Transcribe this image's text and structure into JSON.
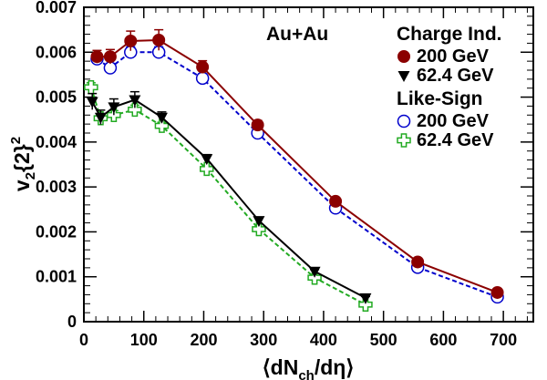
{
  "chart_data": {
    "type": "line",
    "annotation": "Au+Au",
    "xlabel_parts": {
      "open": "⟨dN",
      "sub": "ch",
      "close": "/dη⟩"
    },
    "ylabel_parts": {
      "main": "v",
      "sub": "2",
      "mid": "{2}",
      "sup": "2"
    },
    "xlim": [
      0,
      750
    ],
    "ylim": [
      0,
      0.007
    ],
    "x_ticks": [
      0,
      100,
      200,
      300,
      400,
      500,
      600,
      700
    ],
    "x_tick_labels": [
      "0",
      "100",
      "200",
      "300",
      "400",
      "500",
      "600",
      "700"
    ],
    "y_ticks": [
      0,
      0.001,
      0.002,
      0.003,
      0.004,
      0.005,
      0.006,
      0.007
    ],
    "y_tick_labels": [
      "0",
      "0.001",
      "0.002",
      "0.003",
      "0.004",
      "0.005",
      "0.006",
      "0.007"
    ],
    "legend_groups": [
      {
        "title": "Charge Ind.",
        "entries": [
          "200 GeV",
          "62.4 GeV"
        ]
      },
      {
        "title": "Like-Sign",
        "entries": [
          "200 GeV",
          "62.4 GeV"
        ]
      }
    ],
    "legend_position": "top-right",
    "series": [
      {
        "name": "Charge Ind. 200 GeV",
        "color": "#8b0000",
        "marker": "filled-circle",
        "line": "solid",
        "x": [
          22,
          44,
          78,
          125,
          198,
          290,
          420,
          557,
          690
        ],
        "y": [
          0.0059,
          0.0059,
          0.00625,
          0.00627,
          0.00567,
          0.00438,
          0.00268,
          0.00133,
          0.00065
        ],
        "err": [
          0.00014,
          0.00016,
          0.00022,
          0.00023,
          0.00014,
          0.0001,
          6e-05,
          4e-05,
          3e-05
        ]
      },
      {
        "name": "Charge Ind. 62.4 GeV",
        "color": "#000000",
        "marker": "filled-triangle-down",
        "line": "solid",
        "x": [
          14,
          28,
          50,
          85,
          130,
          205,
          292,
          385,
          470
        ],
        "y": [
          0.0049,
          0.00455,
          0.00478,
          0.00494,
          0.00455,
          0.00363,
          0.00225,
          0.00112,
          0.00053
        ],
        "err": [
          0.00018,
          0.00016,
          0.00018,
          0.00018,
          0.00012,
          9e-05,
          6e-05,
          4e-05,
          3e-05
        ]
      },
      {
        "name": "Like-Sign 200 GeV",
        "color": "#0000cc",
        "marker": "open-circle",
        "line": "dashed",
        "x": [
          22,
          44,
          78,
          125,
          198,
          290,
          420,
          557,
          690
        ],
        "y": [
          0.00585,
          0.00565,
          0.006,
          0.006,
          0.00542,
          0.0042,
          0.00253,
          0.00121,
          0.00055
        ],
        "err": [
          0.0001,
          0.0001,
          0.00012,
          0.00012,
          0.0001,
          8e-05,
          5e-05,
          3e-05,
          2e-05
        ]
      },
      {
        "name": "Like-Sign 62.4 GeV",
        "color": "#22aa22",
        "marker": "open-cross",
        "line": "dashed",
        "x": [
          12,
          28,
          50,
          85,
          130,
          205,
          292,
          385,
          470
        ],
        "y": [
          0.00522,
          0.00453,
          0.0046,
          0.00472,
          0.00436,
          0.0034,
          0.00206,
          0.00098,
          0.00038
        ],
        "err": [
          0.0001,
          0.0001,
          0.0001,
          0.0001,
          8e-05,
          6e-05,
          5e-05,
          3e-05,
          2e-05
        ]
      }
    ]
  }
}
